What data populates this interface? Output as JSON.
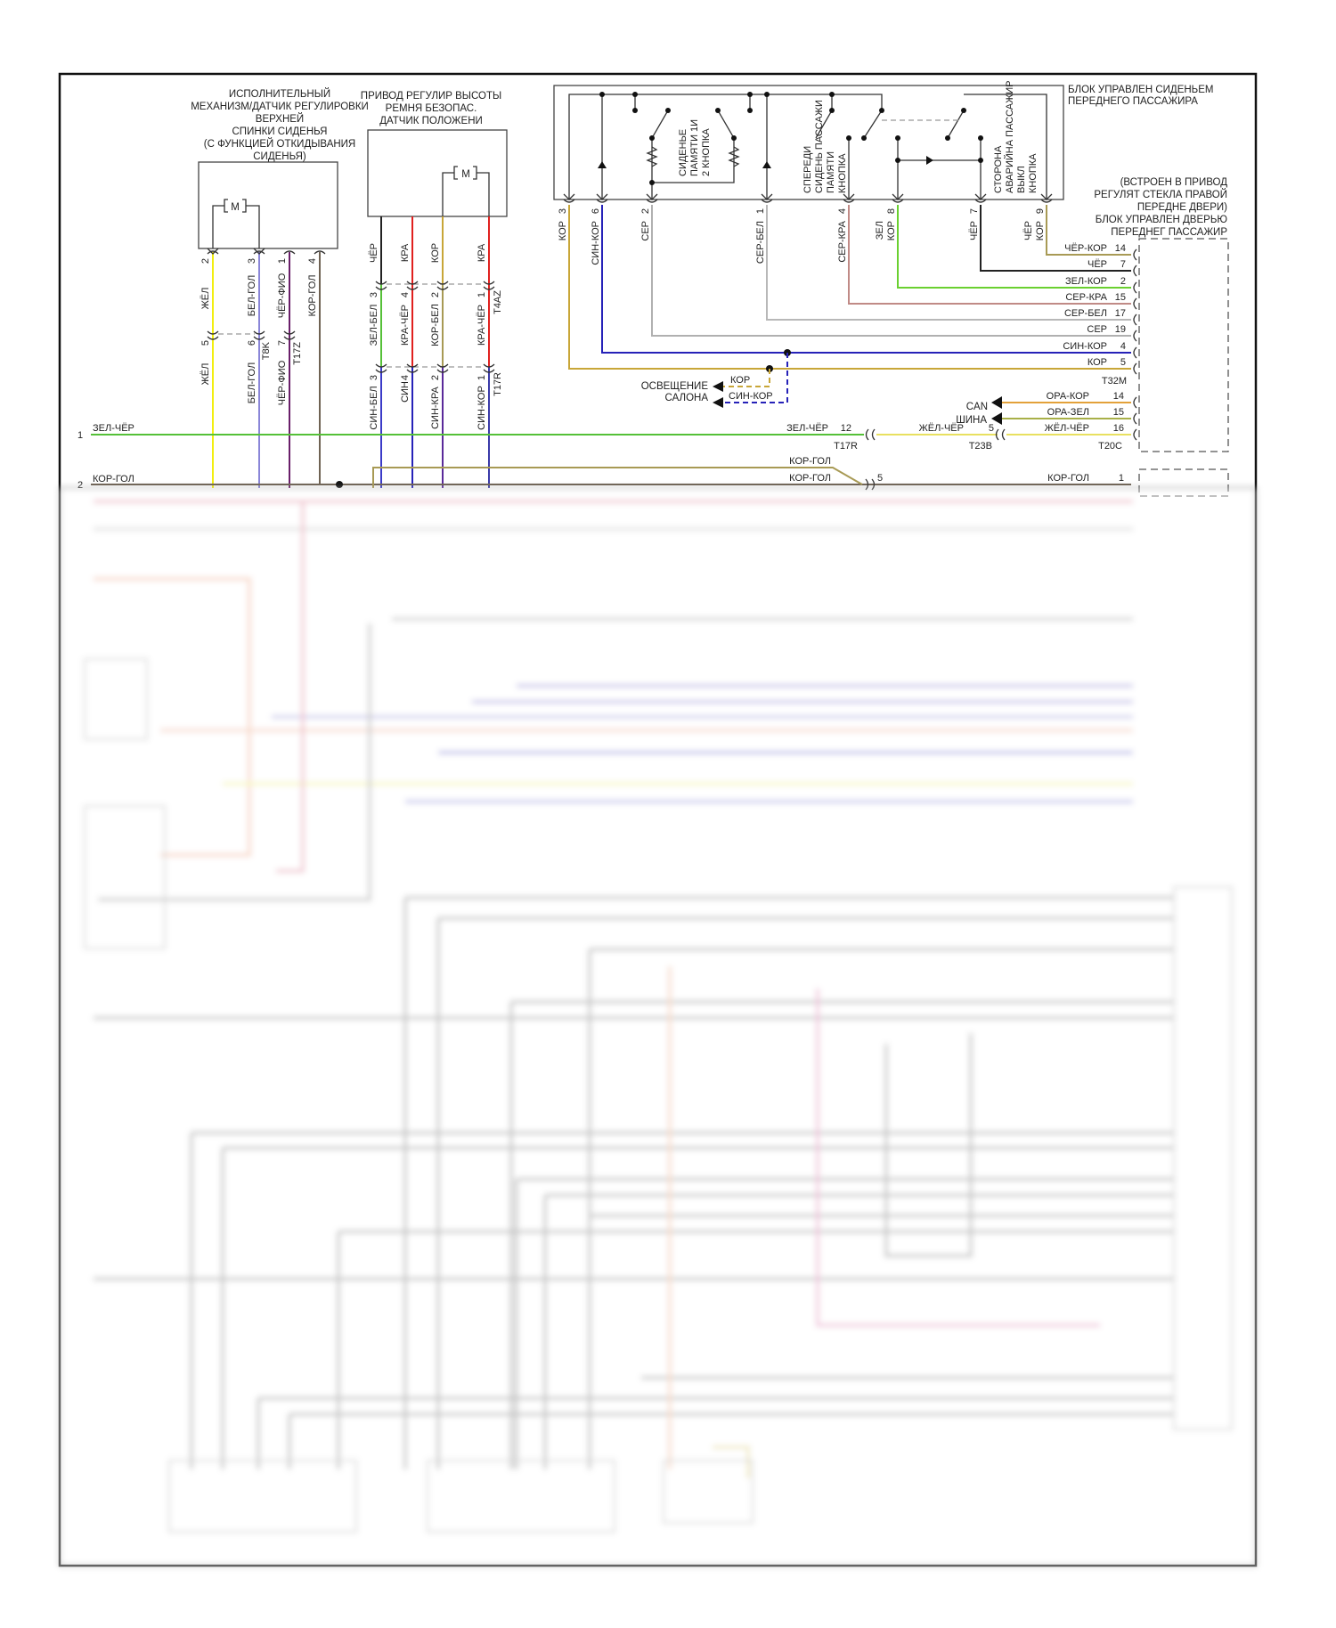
{
  "diagram": {
    "left_rail": [
      {
        "num": "1",
        "label": "ЗЕЛ-ЧЁР"
      },
      {
        "num": "2",
        "label": "КОР-ГОЛ"
      }
    ],
    "block1": {
      "title": [
        "ИСПОЛНИТЕЛЬНЫЙ",
        "МЕХАНИЗМ/ДАТЧИК РЕГУЛИРОВКИ",
        "ВЕРХНЕЙ",
        "СПИНКИ СИДЕНЬЯ",
        "(С ФУНКЦИЕЙ ОТКИДЫВАНИЯ",
        "СИДЕНЬЯ)"
      ],
      "motor": "M",
      "pins": [
        {
          "num": "2",
          "wire": "ЖЁЛ"
        },
        {
          "num": "3",
          "wire": "БЕЛ-ГОЛ"
        },
        {
          "num": "1",
          "wire": "ЧЁР-ФИО"
        },
        {
          "num": "4",
          "wire": "КОР-ГОЛ"
        }
      ],
      "t8k": {
        "name": "T8K",
        "pins": [
          {
            "num": "5",
            "wire": "ЖЁЛ"
          },
          {
            "num": "6",
            "wire": "БЕЛ-ГОЛ"
          }
        ]
      },
      "t17z": {
        "name": "T17Z",
        "pins": [
          {
            "num": "7",
            "wire": "ЧЁР-ФИО"
          }
        ]
      }
    },
    "block2": {
      "title": [
        "ПРИВОД РЕГУЛИР ВЫСОТЫ",
        "РЕМНЯ БЕЗОПАС.",
        "ДАТЧИК ПОЛОЖЕНИ"
      ],
      "motor": "M",
      "wires": [
        "ЧЁР",
        "КРА",
        "КОР",
        "КРА"
      ],
      "t4az": {
        "name": "T4AZ",
        "pins": [
          {
            "num": "3",
            "wire": "ЗЕЛ-БЕЛ"
          },
          {
            "num": "4",
            "wire": "КРА-ЧЁР"
          },
          {
            "num": "2",
            "wire": "КОР-БЕЛ"
          },
          {
            "num": "1",
            "wire": "КРА-ЧЁР"
          }
        ]
      },
      "t17r": {
        "name": "T17R",
        "pins": [
          {
            "num": "3",
            "wire": "СИН-БЕЛ"
          },
          {
            "num": "4",
            "wire": "СИН"
          },
          {
            "num": "2",
            "wire": "СИН-КРА"
          },
          {
            "num": "1",
            "wire": "СИН-КОР"
          }
        ]
      }
    },
    "block3": {
      "title": [
        "БЛОК УПРАВЛЕН СИДЕНЬЕМ",
        "ПЕРЕДНЕГО ПАССАЖИРА"
      ],
      "memory_switch": [
        "СИДЕНЬЕ",
        "ПАМЯТИ 1И",
        "2 КНОПКА"
      ],
      "front_memory_switch": [
        "СПЕРЕДИ",
        "СИДЕНЬ ПАССАЖИ",
        "ПАМЯТИ",
        "КНОПКА"
      ],
      "deactivation_switch": [
        "СТОРОНА",
        "АВАРИЙНА ПАССАЖИР",
        "ВЫКЛ",
        "КНОПКА"
      ],
      "pins": [
        {
          "num": "3",
          "wire": [
            "КОР"
          ]
        },
        {
          "num": "6",
          "wire": [
            "СИН-КОР"
          ]
        },
        {
          "num": "2",
          "wire": [
            "СЕР"
          ]
        },
        {
          "num": "1",
          "wire": [
            "СЕР-БЕЛ"
          ]
        },
        {
          "num": "4",
          "wire": [
            "СЕР-КРА"
          ]
        },
        {
          "num": "8",
          "wire": [
            "ЗЕЛ",
            "КОР"
          ]
        },
        {
          "num": "7",
          "wire": [
            "ЧЁР"
          ]
        },
        {
          "num": "9",
          "wire": [
            "ЧЁР",
            "КОР"
          ]
        }
      ]
    },
    "door_module": {
      "title": [
        "(ВСТРОЕН В ПРИВОД",
        "РЕГУЛЯТ СТЕКЛА ПРАВОЙ",
        "ПЕРЕДНЕ ДВЕРИ)",
        "БЛОК УПРАВЛЕН ДВЕРЬЮ",
        "ПЕРЕДНЕГ ПАССАЖИР"
      ],
      "t32m": {
        "name": "T32M",
        "pins": [
          {
            "wire": "ЧЁР-КОР",
            "num": "14"
          },
          {
            "wire": "ЧЁР",
            "num": "7"
          },
          {
            "wire": "ЗЕЛ-КОР",
            "num": "2"
          },
          {
            "wire": "СЕР-КРА",
            "num": "15"
          },
          {
            "wire": "СЕР-БЕЛ",
            "num": "17"
          },
          {
            "wire": "СЕР",
            "num": "19"
          },
          {
            "wire": "СИН-КОР",
            "num": "4"
          },
          {
            "wire": "КОР",
            "num": "5"
          }
        ]
      },
      "t20c": {
        "name": "T20C",
        "pins": [
          {
            "wire": "ОРА-КОР",
            "num": "14"
          },
          {
            "wire": "ОРА-ЗЕЛ",
            "num": "15"
          },
          {
            "wire": "ЖЁЛ-ЧЁР",
            "num": "16"
          }
        ]
      }
    },
    "interior_light": {
      "label": [
        "ОСВЕЩЕНИЕ",
        "САЛОНА"
      ],
      "wires": [
        "КОР",
        "СИН-КОР"
      ]
    },
    "can_bus": {
      "label": [
        "CAN",
        "ШИНА"
      ]
    },
    "t17r_rail": {
      "name": "T17R",
      "num": "12",
      "wire": "ЗЕЛ-ЧЁР"
    },
    "t23b": {
      "name": "T23B",
      "num": "5",
      "wire": "ЖЁЛ-ЧЁР"
    },
    "kor_gol": {
      "upper": "КОР-ГОЛ",
      "lower": "КОР-ГОЛ",
      "num": "5",
      "right_wire": "КОР-ГОЛ",
      "right_num": "1"
    }
  },
  "colors": {
    "green": "#55c038",
    "yellow": "#f2ee10",
    "lavender": "#8a86d8",
    "purple": "#6a1f6a",
    "brown_gray": "#6f6253",
    "brown": "#c8a638",
    "red": "#e0201e",
    "blue": "#2622b8",
    "gray": "#b0b0b0",
    "gray_red": "#c08a86",
    "orange": "#e3a13a"
  },
  "content_obscured_below": true
}
